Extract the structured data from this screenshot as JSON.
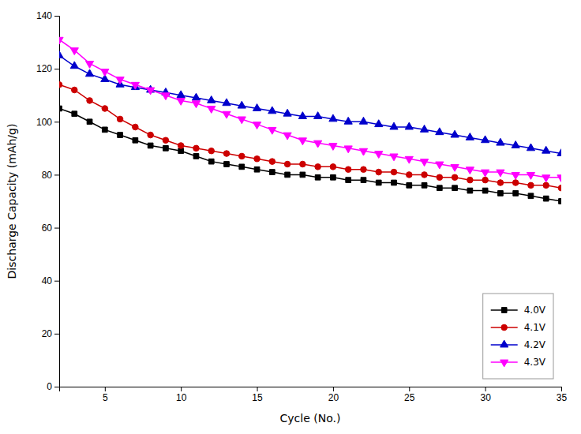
{
  "chart_data": {
    "type": "line",
    "xlabel": "Cycle (No.)",
    "ylabel": "Discharge Capacity (mAh/g)",
    "xlim": [
      2,
      35
    ],
    "ylim": [
      0,
      140
    ],
    "xticks": [
      5,
      10,
      15,
      20,
      25,
      30,
      35
    ],
    "yticks": [
      0,
      20,
      40,
      60,
      80,
      100,
      120,
      140
    ],
    "grid": false,
    "legend": "lower right",
    "x": [
      2,
      3,
      4,
      5,
      6,
      7,
      8,
      9,
      10,
      11,
      12,
      13,
      14,
      15,
      16,
      17,
      18,
      19,
      20,
      21,
      22,
      23,
      24,
      25,
      26,
      27,
      28,
      29,
      30,
      31,
      32,
      33,
      34,
      35
    ],
    "series": [
      {
        "name": "4.0V",
        "color": "#000000",
        "marker": "square",
        "values": [
          105,
          103,
          100,
          97,
          95,
          93,
          91,
          90,
          89,
          87,
          85,
          84,
          83,
          82,
          81,
          80,
          80,
          79,
          79,
          78,
          78,
          77,
          77,
          76,
          76,
          75,
          75,
          74,
          74,
          73,
          73,
          72,
          71,
          70
        ]
      },
      {
        "name": "4.1V",
        "color": "#cc0000",
        "marker": "circle",
        "values": [
          114,
          112,
          108,
          105,
          101,
          98,
          95,
          93,
          91,
          90,
          89,
          88,
          87,
          86,
          85,
          84,
          84,
          83,
          83,
          82,
          82,
          81,
          81,
          80,
          80,
          79,
          79,
          78,
          78,
          77,
          77,
          76,
          76,
          75
        ]
      },
      {
        "name": "4.2V",
        "color": "#0000cc",
        "marker": "triangle-up",
        "values": [
          125,
          121,
          118,
          116,
          114,
          113,
          112,
          111,
          110,
          109,
          108,
          107,
          106,
          105,
          104,
          103,
          102,
          102,
          101,
          100,
          100,
          99,
          98,
          98,
          97,
          96,
          95,
          94,
          93,
          92,
          91,
          90,
          89,
          88
        ]
      },
      {
        "name": "4.3V",
        "color": "#ff00ff",
        "marker": "triangle-down",
        "values": [
          131,
          127,
          122,
          119,
          116,
          114,
          112,
          110,
          108,
          107,
          105,
          103,
          101,
          99,
          97,
          95,
          93,
          92,
          91,
          90,
          89,
          88,
          87,
          86,
          85,
          84,
          83,
          82,
          81,
          81,
          80,
          80,
          79,
          79
        ]
      }
    ]
  }
}
